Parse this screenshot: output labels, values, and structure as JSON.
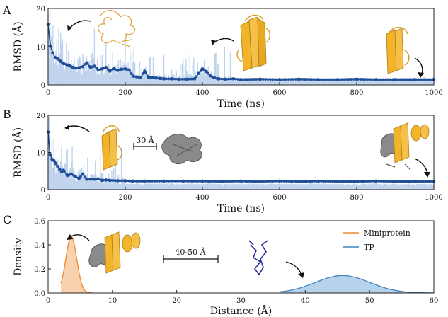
{
  "colors": {
    "rmsd_line": "#1f4e9a",
    "rmsd_fill": "#aac4e6",
    "mini_stroke": "#f08a2c",
    "mini_fill": "#f7c9a0",
    "tp_stroke": "#3f86c2",
    "tp_fill": "#aacbe8",
    "protein_gold": "#f2b42a",
    "protein_gray": "#7a7a7a",
    "peptide_blue": "#2a2a9c"
  },
  "icons": [
    "curved-arrow-icon",
    "scale-bar-icon",
    "protein-structure-icon",
    "peptide-chain-icon"
  ],
  "chart_data": [
    {
      "panel": "A",
      "type": "line",
      "xlabel": "Time (ns)",
      "ylabel": "RMSD (Å)",
      "xlim": [
        0,
        1000
      ],
      "ylim": [
        0,
        20
      ],
      "xticks": [
        "0",
        "200",
        "400",
        "600",
        "800",
        "1000"
      ],
      "yticks": [
        "0",
        "10",
        "20"
      ],
      "grid": false,
      "x": [
        0,
        6,
        12,
        18,
        25,
        32,
        40,
        48,
        56,
        64,
        72,
        80,
        90,
        100,
        110,
        120,
        130,
        140,
        150,
        160,
        170,
        180,
        190,
        200,
        210,
        220,
        230,
        240,
        250,
        260,
        270,
        280,
        290,
        300,
        320,
        340,
        360,
        380,
        390,
        400,
        410,
        420,
        430,
        440,
        460,
        480,
        500,
        550,
        600,
        650,
        700,
        750,
        800,
        850,
        900,
        950,
        1000
      ],
      "values": [
        15.8,
        10.2,
        8.4,
        7.2,
        6.8,
        6.2,
        5.6,
        5.3,
        5.0,
        4.6,
        4.4,
        4.5,
        4.8,
        5.8,
        4.6,
        4.9,
        3.9,
        4.2,
        4.6,
        3.6,
        4.3,
        3.8,
        4.1,
        4.2,
        3.9,
        2.3,
        2.1,
        2.0,
        3.6,
        2.0,
        1.9,
        1.8,
        1.7,
        1.6,
        1.6,
        1.5,
        1.5,
        1.6,
        3.0,
        4.2,
        3.5,
        2.4,
        1.9,
        1.6,
        1.5,
        1.6,
        1.4,
        1.5,
        1.4,
        1.5,
        1.4,
        1.4,
        1.5,
        1.4,
        1.4,
        1.4,
        1.4
      ]
    },
    {
      "panel": "B",
      "type": "line",
      "xlabel": "Time (ns)",
      "ylabel": "RMSD (Å)",
      "xlim": [
        0,
        1000
      ],
      "ylim": [
        0,
        20
      ],
      "xticks": [
        "0",
        "200",
        "400",
        "600",
        "800",
        "1000"
      ],
      "yticks": [
        "0",
        "10",
        "20"
      ],
      "grid": false,
      "annotation": "30 Å",
      "x": [
        0,
        5,
        10,
        15,
        20,
        25,
        30,
        35,
        40,
        50,
        60,
        70,
        80,
        90,
        100,
        110,
        120,
        130,
        140,
        150,
        160,
        180,
        200,
        220,
        250,
        300,
        350,
        400,
        450,
        500,
        550,
        600,
        650,
        700,
        750,
        800,
        850,
        900,
        950,
        1000
      ],
      "values": [
        15.5,
        9.5,
        8.2,
        7.8,
        7.0,
        6.2,
        5.5,
        4.8,
        5.2,
        3.8,
        4.2,
        3.6,
        3.0,
        4.2,
        2.8,
        2.8,
        2.8,
        2.9,
        2.5,
        2.6,
        2.5,
        2.4,
        2.4,
        2.3,
        2.3,
        2.3,
        2.3,
        2.3,
        2.2,
        2.3,
        2.2,
        2.3,
        2.2,
        2.3,
        2.2,
        2.2,
        2.3,
        2.2,
        2.2,
        2.2
      ]
    },
    {
      "panel": "C",
      "type": "area",
      "xlabel": "Distance (Å)",
      "ylabel": "Density",
      "xlim": [
        0,
        60
      ],
      "ylim": [
        0,
        0.6
      ],
      "xticks": [
        "0",
        "10",
        "20",
        "30",
        "40",
        "50",
        "60"
      ],
      "yticks": [
        "0.0",
        "0.2",
        "0.4",
        "0.6"
      ],
      "grid": false,
      "annotation": "40-50 Å",
      "legend_position": "top-right",
      "series": [
        {
          "name": "Miniprotein",
          "mean": 3.6,
          "sd": 0.85,
          "peak": 0.47,
          "range": [
            2,
            7
          ]
        },
        {
          "name": "TP",
          "mean": 45.8,
          "sd": 4.2,
          "peak": 0.145,
          "range": [
            36,
            60
          ]
        }
      ]
    }
  ],
  "panels": {
    "a_label": "A",
    "b_label": "B",
    "c_label": "C"
  }
}
